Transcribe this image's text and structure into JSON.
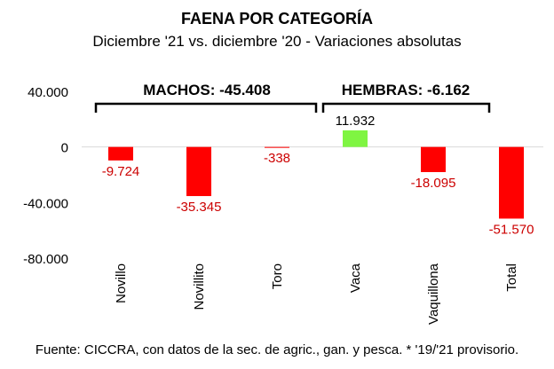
{
  "chart_data": {
    "type": "bar",
    "title": "FAENA POR CATEGORÍA",
    "subtitle": "Diciembre '21 vs. diciembre '20 - Variaciones absolutas",
    "categories": [
      "Novillo",
      "Novillito",
      "Toro",
      "Vaca",
      "Vaquillona",
      "Total"
    ],
    "values": [
      -9724,
      -35345,
      -338,
      11932,
      -18095,
      -51570
    ],
    "value_labels": [
      "-9.724",
      "-35.345",
      "-338",
      "11.932",
      "-18.095",
      "-51.570"
    ],
    "yticks": [
      "40.000",
      "0",
      "-40.000",
      "-80.000"
    ],
    "ytick_values": [
      40000,
      0,
      -40000,
      -80000
    ],
    "ylim": [
      -80000,
      40000
    ],
    "grid": false,
    "colors": {
      "negative": "#ff0000",
      "positive": "#7ff542",
      "negative_label": "#cc0000",
      "positive_label": "#000000"
    },
    "groups": [
      {
        "label": "MACHOS: -45.408",
        "categories": [
          "Novillo",
          "Novillito",
          "Toro"
        ]
      },
      {
        "label": "HEMBRAS: -6.162",
        "categories": [
          "Vaca",
          "Vaquillona"
        ]
      }
    ]
  },
  "footer": {
    "source": "Fuente: CICCRA, con datos de la sec. de agric., gan. y pesca. * '19/'21 provisorio."
  }
}
